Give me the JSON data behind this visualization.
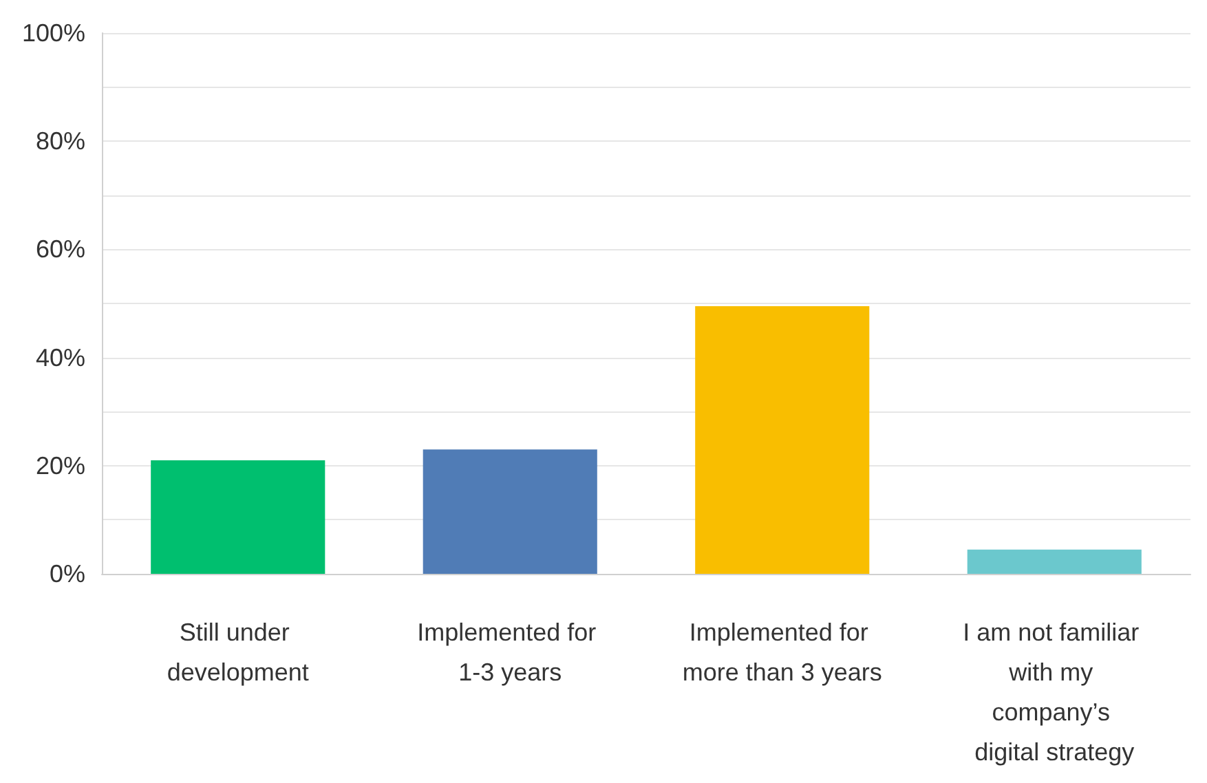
{
  "chart_data": {
    "type": "bar",
    "categories": [
      "Still under development",
      "Implemented for 1-3 years",
      "Implemented for more than 3 years",
      "I am not familiar with my company’s digital strategy"
    ],
    "values": [
      21,
      23,
      49.5,
      4.5
    ],
    "colors": [
      "#00bf6f",
      "#507cb6",
      "#f9be00",
      "#6bc8cd"
    ],
    "ylim": [
      0,
      100
    ],
    "yticks": [
      {
        "value": 0,
        "label": "0%"
      },
      {
        "value": 10,
        "label": null
      },
      {
        "value": 20,
        "label": "20%"
      },
      {
        "value": 30,
        "label": null
      },
      {
        "value": 40,
        "label": "40%"
      },
      {
        "value": 50,
        "label": null
      },
      {
        "value": 60,
        "label": "60%"
      },
      {
        "value": 70,
        "label": null
      },
      {
        "value": 80,
        "label": "80%"
      },
      {
        "value": 90,
        "label": null
      },
      {
        "value": 100,
        "label": "100%"
      }
    ],
    "grid": "y"
  }
}
